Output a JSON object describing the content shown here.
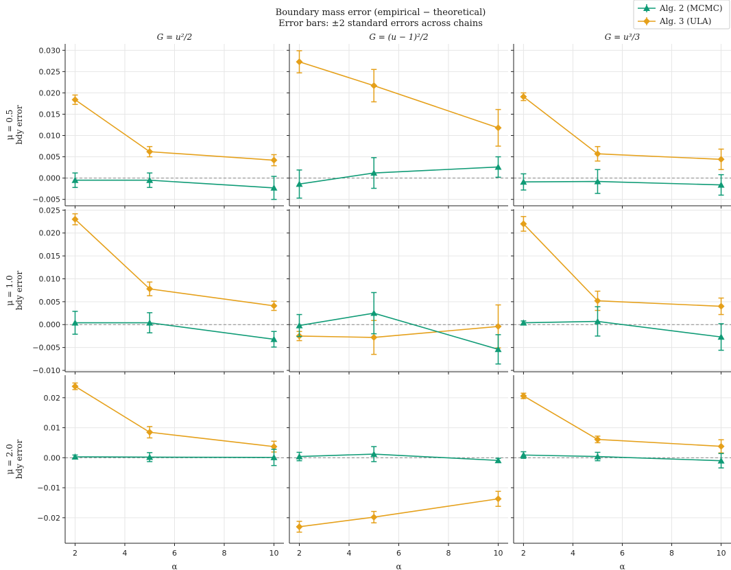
{
  "chart_data": {
    "type": "line",
    "title": "Boundary mass error  (empirical − theoretical)",
    "subtitle": "Error bars: ±2 standard errors across chains",
    "column_titles": [
      "G = u²/2",
      "G = (u − 1)²/2",
      "G = u³/3"
    ],
    "row_labels": [
      "μ = 0.5",
      "μ = 1.0",
      "μ = 2.0"
    ],
    "ylabel": "bdy error",
    "xlabel": "α",
    "x": [
      2,
      5,
      10
    ],
    "xlim": [
      1.6,
      10.4
    ],
    "xticks": [
      2,
      4,
      6,
      8,
      10
    ],
    "grid": true,
    "reference_line": 0,
    "legend": {
      "position": "top-right",
      "entries": [
        "Alg. 2 (MCMC)",
        "Alg. 3 (ULA)"
      ]
    },
    "series_colors": {
      "mcmc": "#0f9b76",
      "ula": "#e5a01a"
    },
    "rows": [
      {
        "ylim": [
          -0.0065,
          0.0315
        ],
        "yticks": [
          -0.005,
          0.0,
          0.005,
          0.01,
          0.015,
          0.02,
          0.025,
          0.03
        ],
        "ytick_labels": [
          "−0.005",
          "0.000",
          "0.005",
          "0.010",
          "0.015",
          "0.020",
          "0.025",
          "0.030"
        ],
        "panels": [
          {
            "mcmc": [
              -0.0005,
              -0.0005,
              -0.0023
            ],
            "mcmc_err": [
              0.0017,
              0.0017,
              0.0027
            ],
            "ula": [
              0.0184,
              0.0062,
              0.0042
            ],
            "ula_err": [
              0.0011,
              0.0012,
              0.0013
            ]
          },
          {
            "mcmc": [
              -0.0014,
              0.0012,
              0.0026
            ],
            "mcmc_err": [
              0.0033,
              0.0036,
              0.0024
            ],
            "ula": [
              0.0273,
              0.0217,
              0.0118
            ],
            "ula_err": [
              0.0026,
              0.0038,
              0.0043
            ]
          },
          {
            "mcmc": [
              -0.0009,
              -0.0008,
              -0.0016
            ],
            "mcmc_err": [
              0.0019,
              0.0028,
              0.0024
            ],
            "ula": [
              0.0191,
              0.0057,
              0.0044
            ],
            "ula_err": [
              0.0009,
              0.0017,
              0.0024
            ]
          }
        ]
      },
      {
        "ylim": [
          -0.0103,
          0.0252
        ],
        "yticks": [
          -0.01,
          -0.005,
          0.0,
          0.005,
          0.01,
          0.015,
          0.02,
          0.025
        ],
        "ytick_labels": [
          "−0.010",
          "−0.005",
          "0.000",
          "0.005",
          "0.010",
          "0.015",
          "0.020",
          "0.025"
        ],
        "panels": [
          {
            "mcmc": [
              0.0004,
              0.0004,
              -0.0032
            ],
            "mcmc_err": [
              0.0025,
              0.0022,
              0.0017
            ],
            "ula": [
              0.023,
              0.0078,
              0.0041
            ],
            "ula_err": [
              0.0012,
              0.0015,
              0.001
            ]
          },
          {
            "mcmc": [
              -0.0002,
              0.0025,
              -0.0054
            ],
            "mcmc_err": [
              0.0024,
              0.0045,
              0.0032
            ],
            "ula": [
              -0.0025,
              -0.0028,
              -0.0004
            ],
            "ula_err": [
              0.001,
              0.0037,
              0.0047
            ]
          },
          {
            "mcmc": [
              0.0004,
              0.0007,
              -0.0027
            ],
            "mcmc_err": [
              0.0004,
              0.0032,
              0.0029
            ],
            "ula": [
              0.022,
              0.0052,
              0.004
            ],
            "ula_err": [
              0.0016,
              0.0021,
              0.0018
            ]
          }
        ]
      },
      {
        "ylim": [
          -0.0285,
          0.0275
        ],
        "yticks": [
          -0.02,
          -0.01,
          0.0,
          0.01,
          0.02
        ],
        "ytick_labels": [
          "−0.02",
          "−0.01",
          "0.00",
          "0.01",
          "0.02"
        ],
        "panels": [
          {
            "mcmc": [
              0.0003,
              0.0002,
              0.0001
            ],
            "mcmc_err": [
              0.0006,
              0.0015,
              0.0027
            ],
            "ula": [
              0.0238,
              0.0085,
              0.0037
            ],
            "ula_err": [
              0.0011,
              0.0019,
              0.0018
            ]
          },
          {
            "mcmc": [
              0.0004,
              0.0012,
              -0.0009
            ],
            "mcmc_err": [
              0.0014,
              0.0025,
              0.0007
            ],
            "ula": [
              -0.023,
              -0.0198,
              -0.0137
            ],
            "ula_err": [
              0.0018,
              0.0019,
              0.0025
            ]
          },
          {
            "mcmc": [
              0.0009,
              0.0004,
              -0.001
            ],
            "mcmc_err": [
              0.0011,
              0.0014,
              0.0024
            ],
            "ula": [
              0.0206,
              0.0061,
              0.0038
            ],
            "ula_err": [
              0.0009,
              0.0011,
              0.0022
            ]
          }
        ]
      }
    ]
  }
}
